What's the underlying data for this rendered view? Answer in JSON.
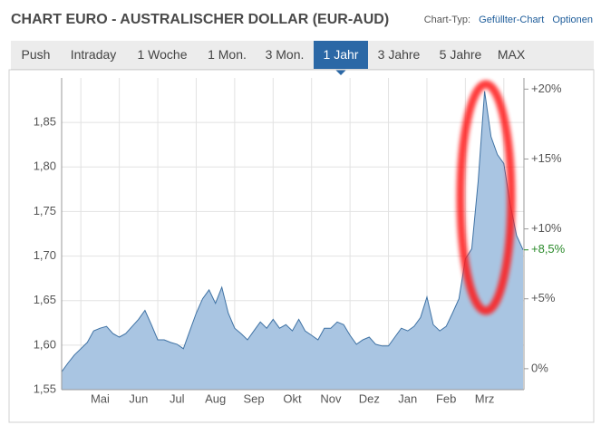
{
  "header": {
    "title": "CHART EURO - AUSTRALISCHER DOLLAR (EUR-AUD)",
    "chart_type_label": "Chart-Typ:",
    "chart_type": "Gefüllter-Chart",
    "options": "Optionen"
  },
  "tabs": {
    "items": [
      "Push",
      "Intraday",
      "1 Woche",
      "1 Mon.",
      "3 Mon.",
      "1 Jahr",
      "3 Jahre",
      "5 Jahre",
      "MAX"
    ],
    "active": 5
  },
  "chart_data": {
    "type": "area",
    "categories": [
      null,
      null,
      null,
      null,
      null,
      null,
      "Mai",
      null,
      null,
      null,
      null,
      null,
      "Jun",
      null,
      null,
      null,
      null,
      null,
      "Jul",
      null,
      null,
      null,
      null,
      null,
      "Aug",
      null,
      null,
      null,
      null,
      null,
      "Sep",
      null,
      null,
      null,
      null,
      null,
      "Okt",
      null,
      null,
      null,
      null,
      null,
      "Nov",
      null,
      null,
      null,
      null,
      null,
      "Dez",
      null,
      null,
      null,
      null,
      null,
      "Jan",
      null,
      null,
      null,
      null,
      null,
      "Feb",
      null,
      null,
      null,
      null,
      null,
      "Mrz",
      null,
      null,
      null,
      null,
      null,
      null
    ],
    "series": [
      {
        "color": "#3f72a4",
        "fill": "#a9c5e2",
        "values": [
          1.57,
          1.58,
          1.589,
          1.596,
          1.603,
          1.616,
          1.619,
          1.621,
          1.613,
          1.609,
          1.613,
          1.621,
          1.629,
          1.639,
          1.623,
          1.606,
          1.606,
          1.603,
          1.601,
          1.596,
          1.616,
          1.636,
          1.652,
          1.662,
          1.647,
          1.665,
          1.636,
          1.619,
          1.613,
          1.606,
          1.616,
          1.626,
          1.619,
          1.629,
          1.619,
          1.623,
          1.616,
          1.629,
          1.616,
          1.611,
          1.606,
          1.619,
          1.619,
          1.626,
          1.623,
          1.611,
          1.601,
          1.606,
          1.609,
          1.601,
          1.599,
          1.599,
          1.609,
          1.619,
          1.616,
          1.621,
          1.631,
          1.654,
          1.623,
          1.616,
          1.621,
          1.636,
          1.652,
          1.697,
          1.708,
          1.784,
          1.885,
          1.834,
          1.814,
          1.804,
          1.758,
          1.723,
          1.707
        ]
      }
    ],
    "ylim": [
      1.55,
      1.9
    ],
    "yticks": [
      {
        "value": 1.55,
        "label": "1,55"
      },
      {
        "value": 1.6,
        "label": "1,60"
      },
      {
        "value": 1.65,
        "label": "1,65"
      },
      {
        "value": 1.7,
        "label": "1,70"
      },
      {
        "value": 1.75,
        "label": "1,75"
      },
      {
        "value": 1.8,
        "label": "1,80"
      },
      {
        "value": 1.85,
        "label": "1,85"
      }
    ],
    "y2lim": [
      -1.5,
      20.8
    ],
    "y2ticks": [
      {
        "value": 0,
        "label": "0%"
      },
      {
        "value": 5,
        "label": "+5%"
      },
      {
        "value": 10,
        "label": "+10%"
      },
      {
        "value": 15,
        "label": "+15%"
      },
      {
        "value": 20,
        "label": "+20%"
      }
    ],
    "current_label": {
      "value": 8.5,
      "label": "+8,5%",
      "color": "#2a8a2a"
    },
    "grid": true
  }
}
